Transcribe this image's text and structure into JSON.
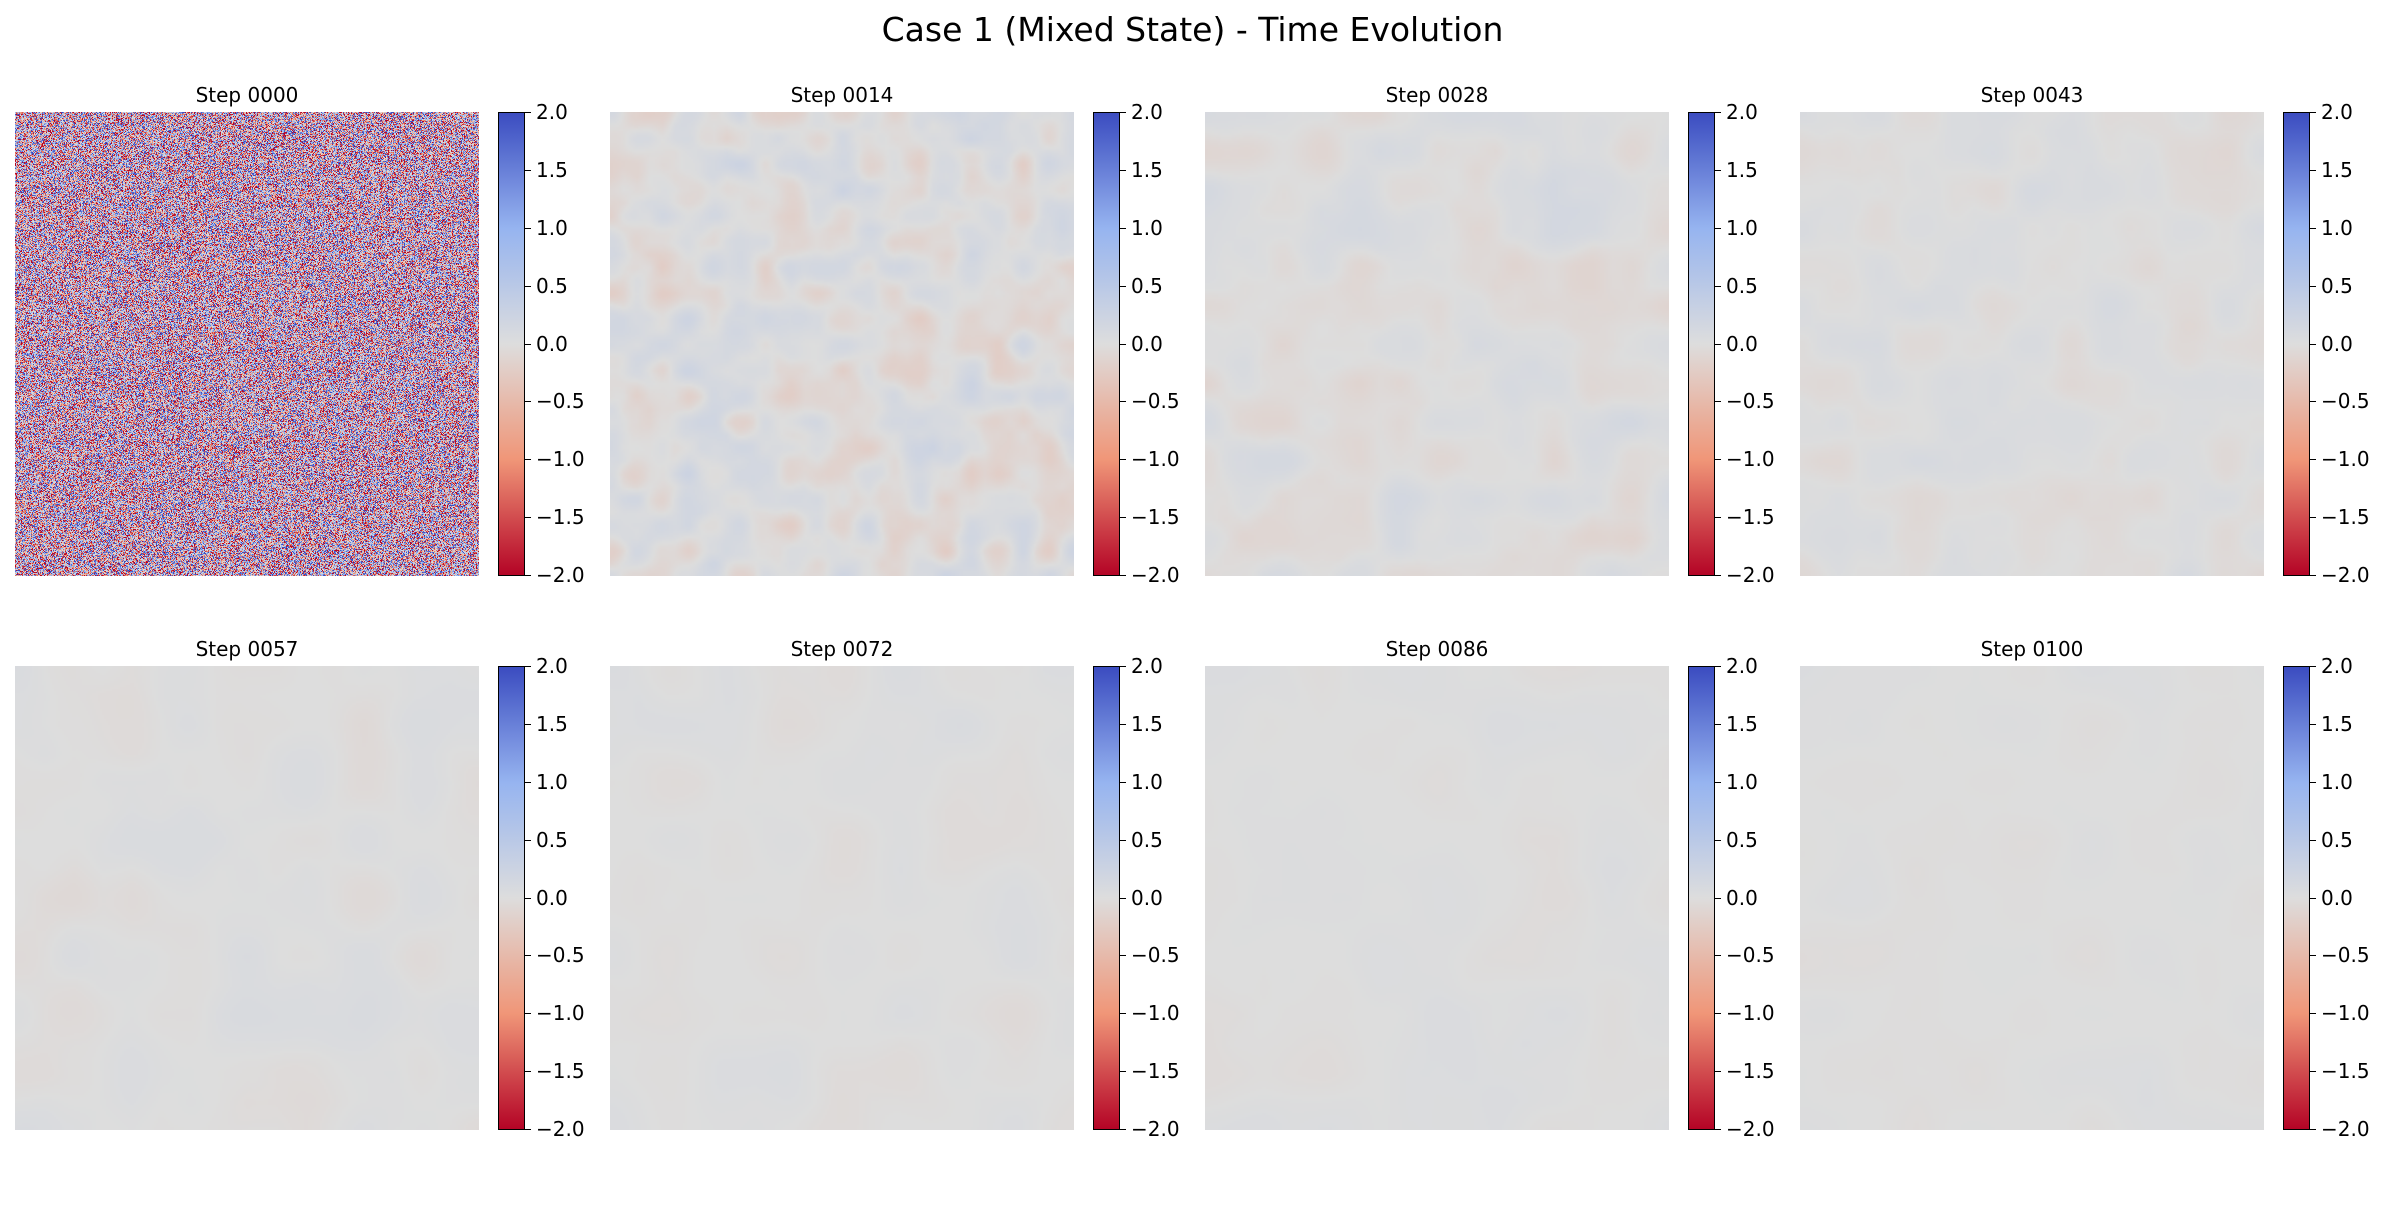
{
  "title": "Case 1 (Mixed State) - Time Evolution",
  "colormap": {
    "name": "coolwarm (reversed: red = low, blue = high)",
    "low_color": "#b40426",
    "mid_color": "#dddddd",
    "high_color": "#3b4cc0"
  },
  "chart_data": {
    "type": "heatmap",
    "vmin": -2.0,
    "vmax": 2.0,
    "colorbar_ticks": [
      "2.0",
      "1.5",
      "1.0",
      "0.5",
      "0.0",
      "−0.5",
      "−1.0",
      "−1.5",
      "−2.0"
    ],
    "axes_visible": false,
    "panels": [
      {
        "title": "Step 0000",
        "step": 0,
        "amplitude": 1.6,
        "noise_scale": "pixel",
        "mean": 0.0
      },
      {
        "title": "Step 0014",
        "step": 14,
        "amplitude": 0.12,
        "noise_scale": "fine",
        "mean": 0.0
      },
      {
        "title": "Step 0028",
        "step": 28,
        "amplitude": 0.07,
        "noise_scale": "medium",
        "mean": 0.0
      },
      {
        "title": "Step 0043",
        "step": 43,
        "amplitude": 0.05,
        "noise_scale": "medium",
        "mean": 0.0
      },
      {
        "title": "Step 0057",
        "step": 57,
        "amplitude": 0.04,
        "noise_scale": "coarse",
        "mean": 0.0
      },
      {
        "title": "Step 0072",
        "step": 72,
        "amplitude": 0.03,
        "noise_scale": "coarse",
        "mean": 0.0
      },
      {
        "title": "Step 0086",
        "step": 86,
        "amplitude": 0.025,
        "noise_scale": "coarse",
        "mean": 0.0
      },
      {
        "title": "Step 0100",
        "step": 100,
        "amplitude": 0.02,
        "noise_scale": "coarse",
        "mean": 0.0
      }
    ]
  }
}
